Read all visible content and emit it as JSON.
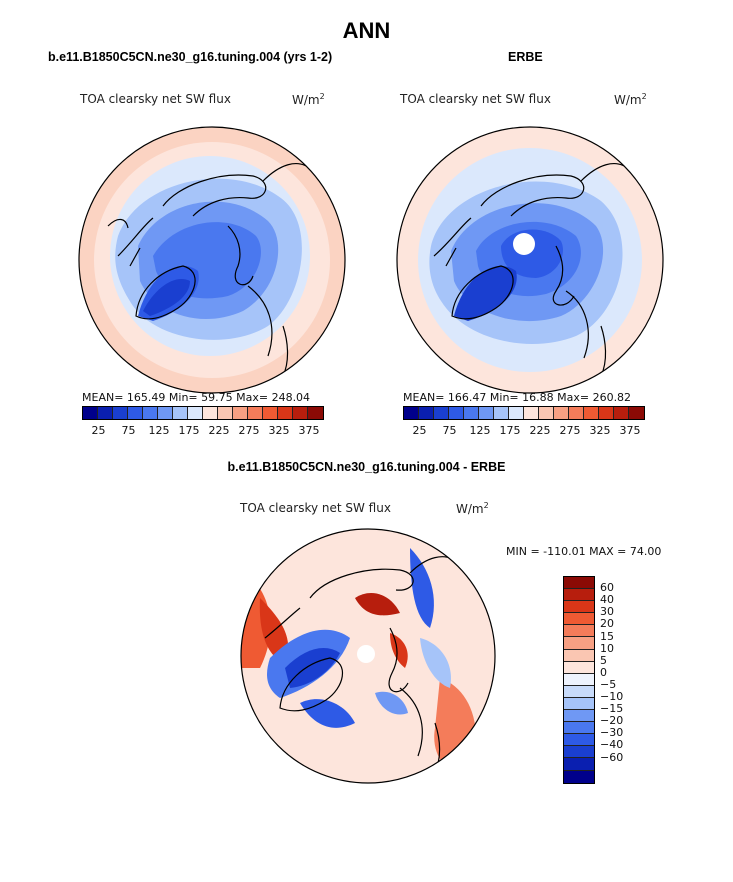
{
  "page_title": "ANN",
  "panel_left": {
    "case_title": "b.e11.B1850C5CN.ne30_g16.tuning.004 (yrs 1-2)",
    "field": "TOA clearsky net SW flux",
    "units": "W/m",
    "units_sup": "2",
    "stats": "MEAN= 165.49   Min=  59.75   Max= 248.04"
  },
  "panel_right": {
    "case_title": "ERBE",
    "field": "TOA clearsky net SW flux",
    "units": "W/m",
    "units_sup": "2",
    "stats": "MEAN= 166.47   Min=  16.88   Max= 260.82"
  },
  "panel_diff": {
    "case_title": "b.e11.B1850C5CN.ne30_g16.tuning.004 - ERBE",
    "field": "TOA clearsky net SW flux",
    "units": "W/m",
    "units_sup": "2",
    "minmax": "MIN = -110.01  MAX =  74.00"
  },
  "colorbar_abs": {
    "colors": [
      "#00008b",
      "#0a1fb0",
      "#1a3fd0",
      "#2e5ae6",
      "#4a78ef",
      "#6f98f4",
      "#a6c4f9",
      "#dbe8fc",
      "#fde5dc",
      "#fac6b2",
      "#f7a083",
      "#f47c5a",
      "#ef5a33",
      "#d93618",
      "#b71e0d",
      "#8b0a05"
    ],
    "labels": [
      "25",
      "75",
      "125",
      "175",
      "225",
      "275",
      "325",
      "375"
    ]
  },
  "colorbar_diff": {
    "colors": [
      "#8b0a05",
      "#b71e0d",
      "#d93618",
      "#ef5a33",
      "#f47c5a",
      "#f7a083",
      "#fac6b2",
      "#fde5dc",
      "#eef3fd",
      "#c8dbfa",
      "#a6c4f9",
      "#6f98f4",
      "#4a78ef",
      "#2e5ae6",
      "#1a3fd0",
      "#0a1fb0",
      "#00008b"
    ],
    "labels": [
      "60",
      "40",
      "30",
      "20",
      "15",
      "10",
      "5",
      "0",
      "−5",
      "−10",
      "−15",
      "−20",
      "−30",
      "−40",
      "−60"
    ]
  }
}
